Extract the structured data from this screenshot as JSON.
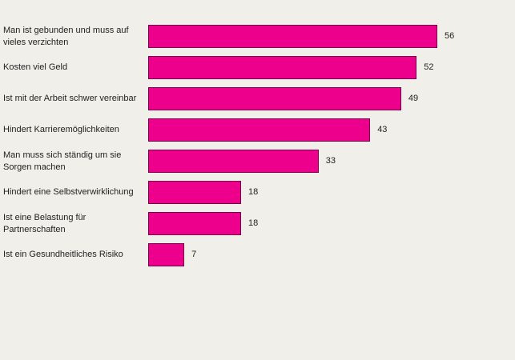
{
  "chart_data": {
    "type": "bar",
    "orientation": "horizontal",
    "title": "",
    "xlabel": "",
    "ylabel": "",
    "xlim": [
      0,
      56
    ],
    "grid": false,
    "bar_color": "#ec008c",
    "categories": [
      "Man ist gebunden und muss auf vieles verzichten",
      "Kosten viel Geld",
      "Ist mit der Arbeit schwer vereinbar",
      "Hindert Karrieremöglichkeiten",
      "Man muss sich ständig um sie Sorgen machen",
      "Hindert eine Selbstverwirklichung",
      "Ist eine Belastung für Partnerschaften",
      "Ist ein Gesundheitliches Risiko"
    ],
    "values": [
      56,
      52,
      49,
      43,
      33,
      18,
      18,
      7
    ]
  }
}
